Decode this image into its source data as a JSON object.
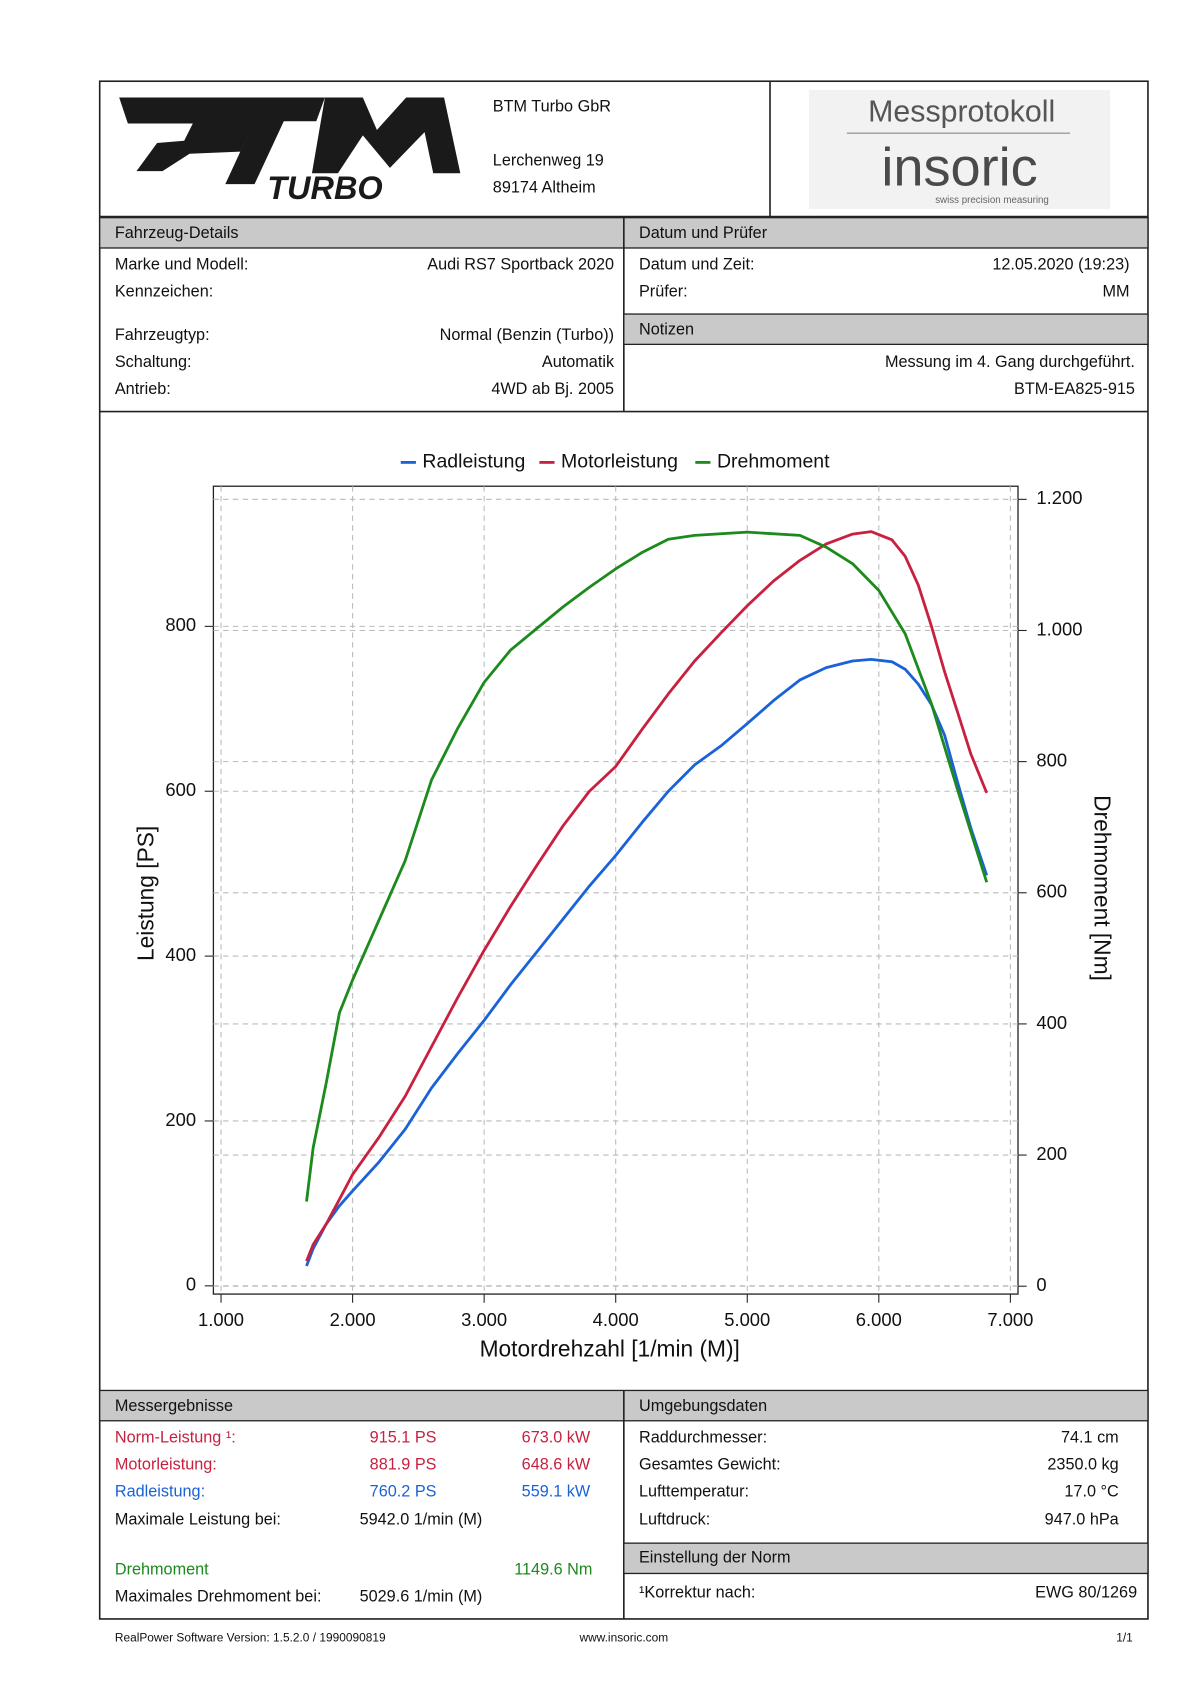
{
  "header": {
    "logo_text": "TURBO",
    "company": "BTM Turbo GbR",
    "street": "Lerchenweg 19",
    "city": "89174 Altheim",
    "protocol_title": "Messprotokoll",
    "brand": "insoric",
    "brand_tagline": "swiss precision measuring"
  },
  "vehicle": {
    "title": "Fahrzeug-Details",
    "rows": [
      [
        "Marke und Modell:",
        "Audi RS7 Sportback 2020"
      ],
      [
        "Kennzeichen:"
      ],
      [
        "Fahrzeugtyp:",
        "Normal (Benzin (Turbo))"
      ],
      [
        "Schaltung:",
        "Automatik"
      ],
      [
        "Antrieb:",
        "4WD ab Bj. 2005"
      ]
    ]
  },
  "date": {
    "title": "Datum und Prüfer",
    "rows": [
      [
        "Datum und Zeit:",
        "12.05.2020 (19:23)"
      ],
      [
        "Prüfer:",
        "MM"
      ]
    ]
  },
  "notes": {
    "title": "Notizen",
    "lines": [
      "Messung im 4. Gang durchgeführt.",
      "BTM-EA825-915"
    ]
  },
  "chart_data": {
    "type": "line",
    "x_label": "Motordrehzahl [1/min (M)]",
    "y_label": "Leistung [PS]",
    "y2_label": "Drehmoment [Nm]",
    "xlim": [
      942,
      7058
    ],
    "xticks": [
      {
        "value": 1000,
        "label": "1.000"
      },
      {
        "value": 2000,
        "label": "2.000"
      },
      {
        "value": 3000,
        "label": "3.000"
      },
      {
        "value": 4000,
        "label": "4.000"
      },
      {
        "value": 5000,
        "label": "5.000"
      },
      {
        "value": 6000,
        "label": "6.000"
      },
      {
        "value": 7000,
        "label": "7.000"
      }
    ],
    "ylim": [
      -10,
      970
    ],
    "yticks": [
      0,
      200,
      400,
      600,
      800
    ],
    "y2lim": [
      -12,
      1220
    ],
    "y2ticks": [
      0,
      200,
      400,
      600,
      800,
      {
        "value": 1000,
        "label": "1.000"
      },
      {
        "value": 1200,
        "label": "1.200"
      }
    ],
    "grid": true,
    "series": [
      {
        "name": "Radleistung",
        "color": "#1a62d8",
        "axis": "y",
        "x": [
          1650,
          1700,
          1800,
          1900,
          2000,
          2200,
          2400,
          2600,
          2800,
          3000,
          3200,
          3400,
          3600,
          3800,
          4000,
          4200,
          4400,
          4600,
          4800,
          5000,
          5200,
          5400,
          5600,
          5800,
          5942,
          6100,
          6200,
          6300,
          6400,
          6500,
          6600,
          6700,
          6820
        ],
        "values": [
          24,
          45,
          75,
          97,
          115,
          150,
          190,
          240,
          282,
          322,
          365,
          405,
          445,
          485,
          522,
          562,
          600,
          632,
          655,
          682,
          710,
          735,
          750,
          758,
          760,
          757,
          748,
          730,
          705,
          668,
          610,
          555,
          498
        ]
      },
      {
        "name": "Motorleistung",
        "color": "#c8203f",
        "axis": "y",
        "x": [
          1650,
          1700,
          1800,
          1900,
          2000,
          2200,
          2400,
          2600,
          2800,
          3000,
          3200,
          3400,
          3600,
          3800,
          4000,
          4200,
          4400,
          4600,
          4800,
          5000,
          5200,
          5400,
          5600,
          5800,
          5942,
          6100,
          6200,
          6300,
          6400,
          6500,
          6600,
          6700,
          6820
        ],
        "values": [
          30,
          50,
          75,
          105,
          135,
          180,
          230,
          290,
          350,
          407,
          460,
          510,
          558,
          600,
          630,
          675,
          718,
          758,
          792,
          825,
          855,
          880,
          900,
          912,
          915,
          905,
          885,
          850,
          800,
          745,
          695,
          645,
          598
        ]
      },
      {
        "name": "Drehmoment",
        "color": "#1c8a1c",
        "axis": "y2",
        "x": [
          1650,
          1700,
          1800,
          1900,
          2000,
          2200,
          2400,
          2600,
          2800,
          3000,
          3200,
          3400,
          3600,
          3800,
          4000,
          4200,
          4400,
          4600,
          5000,
          5400,
          5600,
          5800,
          6000,
          6200,
          6400,
          6600,
          6820
        ],
        "values": [
          129,
          211,
          310,
          417,
          467,
          558,
          649,
          772,
          851,
          921,
          970,
          1003,
          1036,
          1066,
          1094,
          1119,
          1139,
          1145,
          1150,
          1145,
          1127,
          1102,
          1061,
          995,
          888,
          756,
          616
        ]
      }
    ]
  },
  "results": {
    "title": "Messergebnisse",
    "rows": [
      {
        "label": "Norm-Leistung ¹:",
        "ps": "915.1 PS",
        "kw": "673.0 kW",
        "color": "#c8203f"
      },
      {
        "label": "Motorleistung:",
        "ps": "881.9 PS",
        "kw": "648.6 kW",
        "color": "#c8203f"
      },
      {
        "label": "Radleistung:",
        "ps": "760.2 PS",
        "kw": "559.1 kW",
        "color": "#1a62d8"
      }
    ],
    "max_power": [
      "Maximale Leistung bei:",
      "5942.0 1/min (M)"
    ],
    "torque": {
      "label": "Drehmoment",
      "value": "1149.6 Nm",
      "color": "#1c8a1c"
    },
    "max_torque": [
      "Maximales Drehmoment bei:",
      "5029.6 1/min (M)"
    ]
  },
  "ambient": {
    "title": "Umgebungsdaten",
    "rows": [
      [
        "Raddurchmesser:",
        "74.1 cm"
      ],
      [
        "Gesamtes Gewicht:",
        "2350.0 kg"
      ],
      [
        "Lufttemperatur:",
        "17.0 °C"
      ],
      [
        "Luftdruck:",
        "947.0 hPa"
      ]
    ]
  },
  "norm": {
    "title": "Einstellung der Norm",
    "rows": [
      [
        "¹Korrektur nach:",
        "EWG 80/1269"
      ]
    ]
  },
  "footer": {
    "software": "RealPower Software Version: 1.5.2.0 / 1990090819",
    "url": "www.insoric.com",
    "page": "1/1"
  }
}
